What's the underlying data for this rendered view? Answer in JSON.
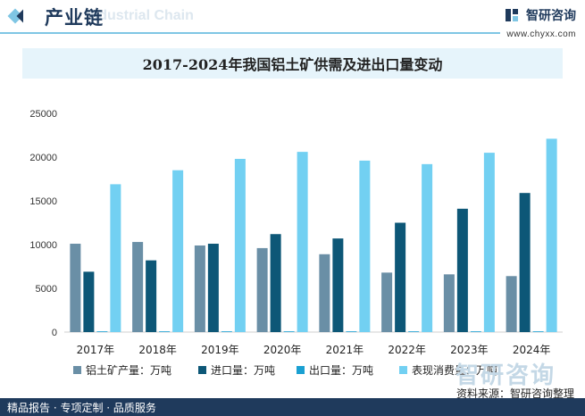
{
  "header": {
    "title": "产业链",
    "watermark": "Industrial Chain",
    "brand_name": "智研咨询",
    "brand_url": "www.chyxx.com"
  },
  "footer": {
    "left": "精品报告 · 专项定制 · 品质服务",
    "right": "资料来源：智研咨询整理",
    "watermark": "智研咨询"
  },
  "colors": {
    "navy": "#1f3a5c",
    "accent": "#7fc6e4",
    "series": [
      "#6a8fa6",
      "#0d5777",
      "#1aa0d2",
      "#72d0f2"
    ]
  },
  "chart_data": {
    "type": "bar",
    "title": "2017-2024年我国铝土矿供需及进出口量变动",
    "categories": [
      "2017年",
      "2018年",
      "2019年",
      "2020年",
      "2021年",
      "2022年",
      "2023年",
      "2024年"
    ],
    "ylim": [
      0,
      25000
    ],
    "yticks": [
      "0",
      "5000",
      "10000",
      "15000",
      "20000",
      "25000"
    ],
    "grid": false,
    "legend_position": "bottom",
    "series": [
      {
        "name": "铝土矿产量：万吨",
        "values": [
          10100,
          10300,
          9900,
          9600,
          8900,
          6800,
          6600,
          6400
        ]
      },
      {
        "name": "进口量：万吨",
        "values": [
          6900,
          8200,
          10100,
          11200,
          10700,
          12500,
          14100,
          15900
        ]
      },
      {
        "name": "出口量：万吨",
        "values": [
          30,
          30,
          30,
          30,
          30,
          30,
          30,
          30
        ]
      },
      {
        "name": "表现消费量：万吨",
        "values": [
          16900,
          18500,
          19800,
          20600,
          19600,
          19200,
          20500,
          22100
        ]
      }
    ]
  }
}
